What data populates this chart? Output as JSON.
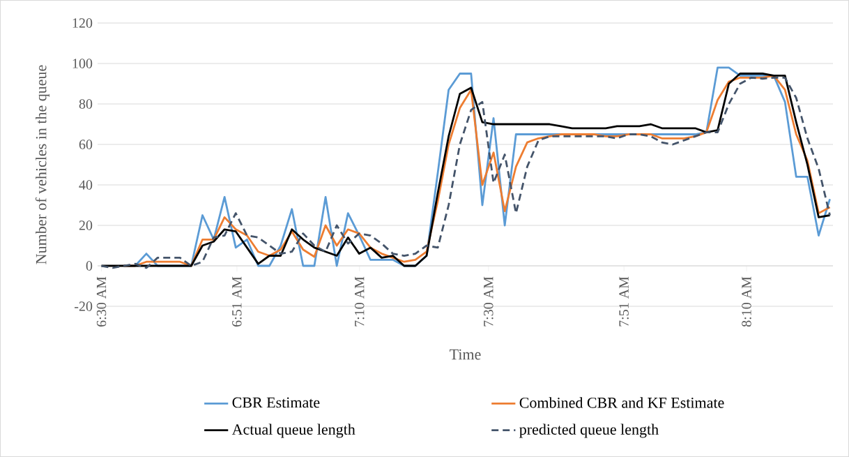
{
  "chart_data": {
    "type": "line",
    "xlabel": "Time",
    "ylabel": "Number of vehicles in the queue",
    "x": [
      6.5,
      6.529,
      6.558,
      6.587,
      6.616,
      6.645,
      6.674,
      6.703,
      6.732,
      6.761,
      6.79,
      6.818,
      6.847,
      6.876,
      6.905,
      6.934,
      6.963,
      6.992,
      7.021,
      7.05,
      7.079,
      7.108,
      7.137,
      7.166,
      7.195,
      7.224,
      7.253,
      7.282,
      7.311,
      7.34,
      7.369,
      7.397,
      7.426,
      7.455,
      7.484,
      7.513,
      7.542,
      7.571,
      7.6,
      7.629,
      7.658,
      7.687,
      7.716,
      7.745,
      7.774,
      7.803,
      7.832,
      7.861,
      7.89,
      7.919,
      7.948,
      7.976,
      8.005,
      8.034,
      8.063,
      8.092,
      8.121,
      8.15,
      8.179,
      8.208,
      8.237,
      8.266,
      8.295,
      8.324,
      8.353,
      8.382
    ],
    "series": [
      {
        "name": "CBR Estimate",
        "color": "#5b9bd5",
        "values": [
          null,
          null,
          0,
          0,
          6,
          0,
          0,
          0,
          0,
          25,
          13,
          34,
          9,
          13,
          0,
          0,
          10,
          28,
          0,
          0,
          34,
          0,
          26,
          15,
          3,
          3,
          3,
          0,
          0,
          5,
          46,
          87,
          95,
          95,
          30,
          73,
          20,
          65,
          65,
          65,
          65,
          65,
          65,
          65,
          65,
          65,
          65,
          65,
          65,
          65,
          65,
          65,
          65,
          65,
          66,
          98,
          98,
          94,
          94,
          94,
          94,
          81,
          44,
          44,
          15,
          33
        ]
      },
      {
        "name": "Combined CBR and KF Estimate",
        "color": "#ed7d31",
        "values": [
          null,
          null,
          0,
          0,
          2,
          2,
          2,
          2,
          0,
          13,
          13,
          24,
          18,
          15,
          7,
          5,
          8,
          17,
          8,
          4.5,
          20,
          10,
          18,
          16,
          9,
          6,
          4,
          2,
          3,
          7,
          32,
          60,
          78,
          87,
          40,
          56,
          27,
          49,
          61,
          63,
          64,
          65,
          65,
          65,
          65,
          64,
          64,
          65,
          65,
          65,
          63,
          63,
          63,
          64,
          66,
          82,
          91,
          93,
          93,
          93,
          94,
          87,
          65,
          52,
          26,
          29
        ]
      },
      {
        "name": "Actual queue length",
        "color": "#000000",
        "values": [
          0,
          0,
          0,
          0,
          0,
          0,
          0,
          0,
          0,
          10,
          12,
          18,
          17,
          9,
          1,
          5,
          5,
          18,
          13,
          9,
          7,
          5,
          14,
          6,
          9,
          4,
          5,
          0,
          0,
          5,
          36,
          64,
          85,
          88,
          71,
          70,
          70,
          70,
          70,
          70,
          70,
          69,
          68,
          68,
          68,
          68,
          69,
          69,
          69,
          70,
          68,
          68,
          68,
          68,
          66,
          67,
          90,
          95,
          95,
          95,
          94,
          94,
          71,
          50,
          24,
          25
        ]
      },
      {
        "name": "predicted queue length",
        "color": "#44546a",
        "line_style": "dashed",
        "values": [
          0,
          -1,
          0,
          1,
          -1,
          4,
          4,
          4,
          0,
          2,
          14,
          15,
          26,
          15,
          14,
          10,
          6,
          7,
          16,
          10,
          7,
          20,
          11,
          16,
          15,
          11,
          6,
          5,
          6,
          10,
          9,
          30,
          60,
          77,
          81,
          41,
          55,
          26,
          49,
          62,
          64,
          64,
          64,
          64,
          64,
          64,
          63,
          65,
          65,
          64,
          61,
          60,
          62,
          64,
          66,
          66,
          80,
          90,
          93,
          92.5,
          93,
          93,
          83,
          63,
          48,
          25
        ]
      }
    ],
    "xlim": [
      6.49,
      8.39
    ],
    "xticks": [
      {
        "value": 6.5,
        "label": "6:30 AM"
      },
      {
        "value": 6.85,
        "label": "6:51 AM"
      },
      {
        "value": 7.1667,
        "label": "7:10 AM"
      },
      {
        "value": 7.5,
        "label": "7:30 AM"
      },
      {
        "value": 7.85,
        "label": "7:51 AM"
      },
      {
        "value": 8.1667,
        "label": "8:10 AM"
      }
    ],
    "ylim": [
      -20,
      120
    ],
    "yticks": [
      -20,
      0,
      20,
      40,
      60,
      80,
      100,
      120
    ],
    "grid": "y",
    "legend": "bottom"
  }
}
